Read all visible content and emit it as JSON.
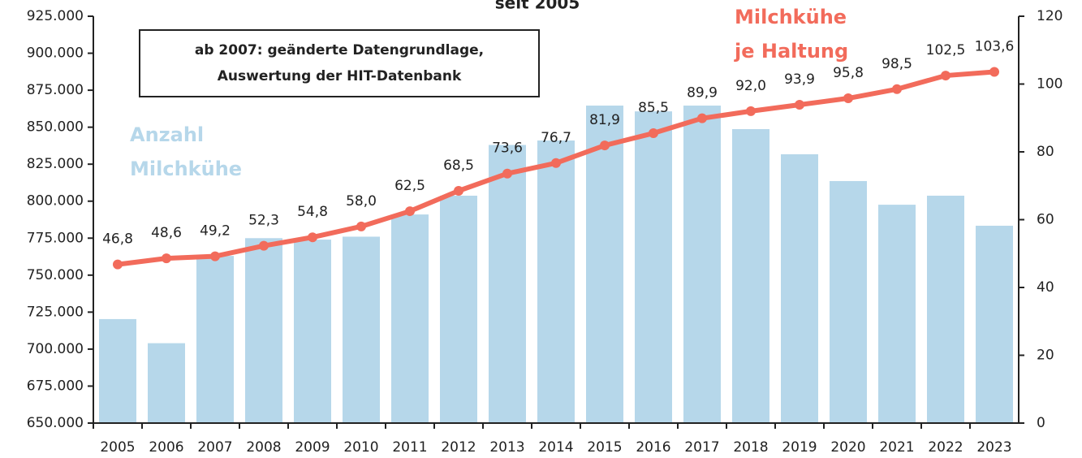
{
  "chart_data": {
    "type": "combo",
    "title": "seit 2005",
    "categories": [
      "2005",
      "2006",
      "2007",
      "2008",
      "2009",
      "2010",
      "2011",
      "2012",
      "2013",
      "2014",
      "2015",
      "2016",
      "2017",
      "2018",
      "2019",
      "2020",
      "2021",
      "2022",
      "2023"
    ],
    "series": [
      {
        "name": "Anzahl Milchkühe",
        "type": "bar",
        "color": "#b6d7ea",
        "axis": "y",
        "values": [
          720300,
          704000,
          763000,
          775000,
          774000,
          776000,
          791000,
          803700,
          838000,
          841000,
          864600,
          860700,
          864600,
          848700,
          831700,
          813600,
          797600,
          803700,
          783400
        ]
      },
      {
        "name": "Milchkühe je Haltung",
        "type": "line",
        "color": "#f26b5b",
        "axis": "y2",
        "values": [
          46.8,
          48.6,
          49.2,
          52.3,
          54.8,
          58.0,
          62.5,
          68.5,
          73.6,
          76.7,
          81.9,
          85.5,
          89.9,
          92.0,
          93.9,
          95.8,
          98.5,
          102.5,
          103.6
        ],
        "value_labels": [
          "46,8",
          "48,6",
          "49,2",
          "52,3",
          "54,8",
          "58,0",
          "62,5",
          "68,5",
          "73,6",
          "76,7",
          "81,9",
          "85,5",
          "89,9",
          "92,0",
          "93,9",
          "95,8",
          "98,5",
          "102,5",
          "103,6"
        ]
      }
    ],
    "annotation": [
      "ab 2007: geänderte Datengrundlage,",
      "Auswertung der HIT-Datenbank"
    ],
    "ylim": [
      650000,
      925000
    ],
    "yticks": [
      {
        "value": 650000,
        "label": "650.000"
      },
      {
        "value": 675000,
        "label": "675.000"
      },
      {
        "value": 700000,
        "label": "700.000"
      },
      {
        "value": 725000,
        "label": "725.000"
      },
      {
        "value": 750000,
        "label": "750.000"
      },
      {
        "value": 775000,
        "label": "775.000"
      },
      {
        "value": 800000,
        "label": "800.000"
      },
      {
        "value": 825000,
        "label": "825.000"
      },
      {
        "value": 850000,
        "label": "850.000"
      },
      {
        "value": 875000,
        "label": "875.000"
      },
      {
        "value": 900000,
        "label": "900.000"
      },
      {
        "value": 925000,
        "label": "925.000"
      }
    ],
    "y2lim": [
      0,
      120
    ],
    "y2ticks": [
      0,
      20,
      40,
      60,
      80,
      100,
      120
    ],
    "grid": false
  }
}
